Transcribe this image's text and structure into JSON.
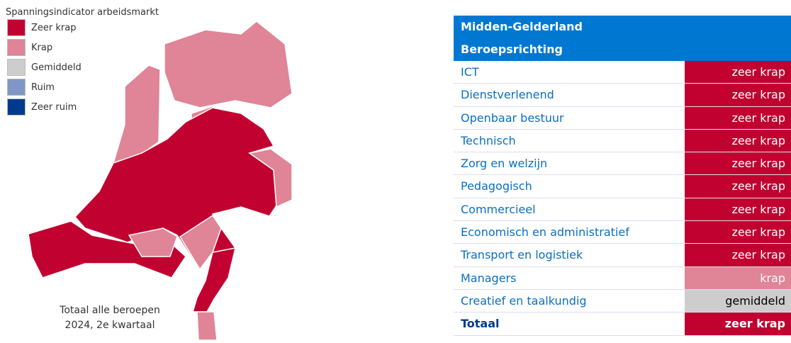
{
  "legend": {
    "title": "Spanningsindicator arbeidsmarkt",
    "items": [
      {
        "label": "Zeer krap",
        "color": "#c10230"
      },
      {
        "label": "Krap",
        "color": "#e08497"
      },
      {
        "label": "Gemiddeld",
        "color": "#cdcdcd"
      },
      {
        "label": "Ruim",
        "color": "#8097c6"
      },
      {
        "label": "Zeer ruim",
        "color": "#003a8c"
      }
    ]
  },
  "map": {
    "caption": [
      "Totaal alle beroepen",
      "2024, 2e kwartaal"
    ]
  },
  "table": {
    "header": [
      "Midden-Gelderland",
      "Beroepsrichting"
    ],
    "rows": [
      {
        "label": "ICT",
        "value": "zeer krap",
        "color": "#c10230"
      },
      {
        "label": "Dienstverlenend",
        "value": "zeer krap",
        "color": "#c10230"
      },
      {
        "label": "Openbaar bestuur",
        "value": "zeer krap",
        "color": "#c10230"
      },
      {
        "label": "Technisch",
        "value": "zeer krap",
        "color": "#c10230"
      },
      {
        "label": "Zorg en welzijn",
        "value": "zeer krap",
        "color": "#c10230"
      },
      {
        "label": "Pedagogisch",
        "value": "zeer krap",
        "color": "#c10230"
      },
      {
        "label": "Commercieel",
        "value": "zeer krap",
        "color": "#c10230"
      },
      {
        "label": "Economisch en administratief",
        "value": "zeer krap",
        "color": "#c10230"
      },
      {
        "label": "Transport en logistiek",
        "value": "zeer krap",
        "color": "#c10230"
      },
      {
        "label": "Managers",
        "value": "krap",
        "color": "#e08497"
      },
      {
        "label": "Creatief en taalkundig",
        "value": "gemiddeld",
        "color": "#cdcdcd"
      }
    ],
    "total": {
      "label": "Totaal",
      "value": "zeer krap",
      "color": "#c10230"
    }
  }
}
